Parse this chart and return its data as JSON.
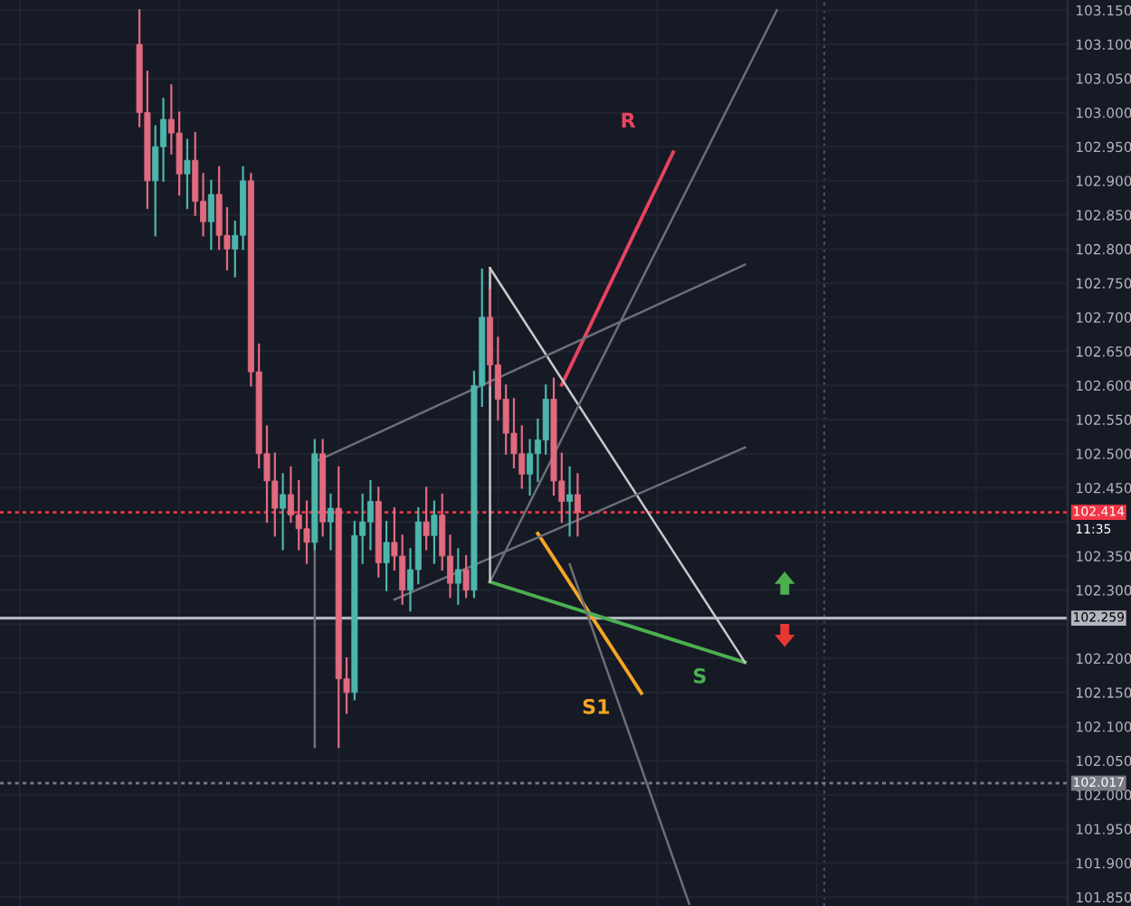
{
  "chart_data": {
    "type": "candlestick",
    "categories": [
      null,
      null,
      null,
      null,
      null,
      null,
      null,
      null,
      null,
      null,
      null,
      null,
      null,
      null,
      null,
      null,
      null,
      null,
      null,
      null,
      null,
      null,
      null,
      null,
      null,
      null,
      null,
      null,
      null,
      null,
      null,
      null,
      null,
      null,
      null,
      null,
      null,
      null,
      null,
      null,
      null,
      null,
      null,
      null,
      null,
      null,
      null,
      null,
      null,
      null,
      null,
      null,
      null,
      null,
      null,
      null,
      null,
      null,
      null,
      null,
      null,
      null,
      null,
      null,
      null,
      null,
      null,
      null,
      null,
      null,
      null,
      null,
      null,
      null,
      null,
      null,
      null,
      null,
      null,
      null,
      null,
      null,
      null,
      null,
      null,
      null,
      null,
      null,
      null,
      null,
      null,
      null,
      null,
      null,
      null,
      null,
      null,
      null,
      null,
      null,
      null,
      null,
      null,
      null,
      null,
      null,
      null,
      null,
      null,
      null,
      null,
      null,
      null,
      null,
      null,
      null,
      null,
      null,
      null,
      null,
      null,
      null,
      null,
      null,
      null,
      null,
      null,
      null,
      null,
      null,
      null,
      null,
      null,
      null
    ],
    "ohlc": [
      null,
      null,
      null,
      null,
      null,
      null,
      null,
      null,
      null,
      null,
      null,
      null,
      null,
      null,
      null,
      null,
      null,
      [
        103.1,
        103.15,
        102.98,
        103.0
      ],
      [
        103.0,
        103.06,
        102.86,
        102.9
      ],
      [
        102.9,
        102.98,
        102.82,
        102.95
      ],
      [
        102.95,
        103.02,
        102.9,
        102.99
      ],
      [
        102.99,
        103.04,
        102.94,
        102.97
      ],
      [
        102.97,
        103.0,
        102.88,
        102.91
      ],
      [
        102.91,
        102.96,
        102.86,
        102.93
      ],
      [
        102.93,
        102.97,
        102.85,
        102.87
      ],
      [
        102.87,
        102.91,
        102.82,
        102.84
      ],
      [
        102.84,
        102.9,
        102.8,
        102.88
      ],
      [
        102.88,
        102.92,
        102.8,
        102.82
      ],
      [
        102.82,
        102.86,
        102.77,
        102.8
      ],
      [
        102.8,
        102.84,
        102.76,
        102.82
      ],
      [
        102.82,
        102.92,
        102.8,
        102.9
      ],
      [
        102.9,
        102.91,
        102.6,
        102.62
      ],
      [
        102.62,
        102.66,
        102.48,
        102.5
      ],
      [
        102.5,
        102.54,
        102.4,
        102.46
      ],
      [
        102.46,
        102.5,
        102.38,
        102.42
      ],
      [
        102.42,
        102.47,
        102.36,
        102.44
      ],
      [
        102.44,
        102.48,
        102.4,
        102.41
      ],
      [
        102.41,
        102.46,
        102.36,
        102.39
      ],
      [
        102.39,
        102.43,
        102.34,
        102.37
      ],
      [
        102.37,
        102.52,
        102.36,
        102.5
      ],
      [
        102.5,
        102.52,
        102.38,
        102.4
      ],
      [
        102.4,
        102.44,
        102.36,
        102.42
      ],
      [
        102.42,
        102.48,
        102.07,
        102.17
      ],
      [
        102.17,
        102.2,
        102.12,
        102.15
      ],
      [
        102.15,
        102.4,
        102.14,
        102.38
      ],
      [
        102.38,
        102.44,
        102.34,
        102.4
      ],
      [
        102.4,
        102.46,
        102.36,
        102.43
      ],
      [
        102.43,
        102.45,
        102.32,
        102.34
      ],
      [
        102.34,
        102.4,
        102.3,
        102.37
      ],
      [
        102.37,
        102.42,
        102.33,
        102.35
      ],
      [
        102.35,
        102.38,
        102.28,
        102.3
      ],
      [
        102.3,
        102.36,
        102.27,
        102.33
      ],
      [
        102.33,
        102.42,
        102.31,
        102.4
      ],
      [
        102.4,
        102.45,
        102.36,
        102.38
      ],
      [
        102.38,
        102.43,
        102.34,
        102.41
      ],
      [
        102.41,
        102.44,
        102.33,
        102.35
      ],
      [
        102.35,
        102.38,
        102.29,
        102.31
      ],
      [
        102.31,
        102.36,
        102.28,
        102.33
      ],
      [
        102.33,
        102.35,
        102.29,
        102.3
      ],
      [
        102.3,
        102.62,
        102.29,
        102.6
      ],
      [
        102.6,
        102.77,
        102.57,
        102.7
      ],
      [
        102.7,
        102.74,
        102.6,
        102.63
      ],
      [
        102.63,
        102.67,
        102.55,
        102.58
      ],
      [
        102.58,
        102.6,
        102.5,
        102.53
      ],
      [
        102.53,
        102.58,
        102.48,
        102.5
      ],
      [
        102.5,
        102.54,
        102.45,
        102.47
      ],
      [
        102.47,
        102.52,
        102.44,
        102.5
      ],
      [
        102.5,
        102.55,
        102.46,
        102.52
      ],
      [
        102.52,
        102.6,
        102.5,
        102.58
      ],
      [
        102.58,
        102.61,
        102.44,
        102.46
      ],
      [
        102.46,
        102.5,
        102.4,
        102.43
      ],
      [
        102.43,
        102.48,
        102.38,
        102.44
      ],
      [
        102.44,
        102.47,
        102.38,
        102.414
      ],
      null,
      null,
      null,
      null,
      null,
      null,
      null,
      null,
      null,
      null,
      null,
      null,
      null,
      null,
      null,
      null,
      null,
      null,
      null,
      null,
      null,
      null,
      null,
      null,
      null,
      null,
      null,
      null,
      null,
      null,
      null,
      null,
      null,
      null,
      null,
      null,
      null,
      null,
      null,
      null,
      null,
      null,
      null,
      null,
      null,
      null,
      null,
      null,
      null,
      null,
      null,
      null,
      null,
      null,
      null,
      null,
      null,
      null,
      null,
      null,
      null
    ],
    "series": [
      {
        "name": "R",
        "type": "line",
        "color": "#e8435f",
        "values": [
          null,
          null,
          null,
          null,
          null,
          null,
          null,
          null,
          null,
          null,
          null,
          null,
          null,
          null,
          null,
          null,
          null,
          null,
          null,
          null,
          null,
          null,
          null,
          null,
          null,
          null,
          null,
          null,
          null,
          null,
          null,
          null,
          null,
          null,
          null,
          null,
          null,
          null,
          null,
          null,
          null,
          null,
          null,
          null,
          null,
          null,
          null,
          null,
          null,
          null,
          null,
          null,
          null,
          null,
          null,
          null,
          null,
          null,
          null,
          null,
          null,
          null,
          null,
          null,
          null,
          null,
          null,
          null,
          null,
          null,
          102.601,
          null,
          null,
          null,
          null,
          null,
          null,
          null,
          null,
          null,
          null,
          null,
          null,
          null,
          102.942,
          null,
          null,
          null,
          null,
          null,
          null,
          null,
          null,
          null,
          null,
          null,
          null,
          null,
          null,
          null,
          null,
          null,
          null,
          null,
          null,
          null,
          null,
          null,
          null,
          null,
          null,
          null,
          null,
          null,
          null,
          null,
          null,
          null,
          null,
          null,
          null,
          null,
          null,
          null,
          null,
          null,
          null,
          null,
          null,
          null,
          null,
          null,
          null,
          null
        ]
      },
      {
        "name": "S1",
        "type": "line",
        "color": "#f5a623",
        "values": [
          null,
          null,
          null,
          null,
          null,
          null,
          null,
          null,
          null,
          null,
          null,
          null,
          null,
          null,
          null,
          null,
          null,
          null,
          null,
          null,
          null,
          null,
          null,
          null,
          null,
          null,
          null,
          null,
          null,
          null,
          null,
          null,
          null,
          null,
          null,
          null,
          null,
          null,
          null,
          null,
          null,
          null,
          null,
          null,
          null,
          null,
          null,
          null,
          null,
          null,
          null,
          null,
          null,
          null,
          null,
          null,
          null,
          null,
          null,
          null,
          null,
          null,
          null,
          null,
          null,
          null,
          null,
          102.383,
          null,
          null,
          null,
          null,
          null,
          null,
          null,
          null,
          null,
          null,
          null,
          null,
          102.149,
          null,
          null,
          null,
          null,
          null,
          null,
          null,
          null,
          null,
          null,
          null,
          null,
          null,
          null,
          null,
          null,
          null,
          null,
          null,
          null,
          null,
          null,
          null,
          null,
          null,
          null,
          null,
          null,
          null,
          null,
          null,
          null,
          null,
          null,
          null,
          null,
          null,
          null,
          null,
          null,
          null,
          null,
          null,
          null,
          null,
          null,
          null,
          null,
          null,
          null,
          null,
          null,
          null
        ]
      },
      {
        "name": "S",
        "type": "line",
        "color": "#4caf50",
        "values": [
          null,
          null,
          null,
          null,
          null,
          null,
          null,
          null,
          null,
          null,
          null,
          null,
          null,
          null,
          null,
          null,
          null,
          null,
          null,
          null,
          null,
          null,
          null,
          null,
          null,
          null,
          null,
          null,
          null,
          null,
          null,
          null,
          null,
          null,
          null,
          null,
          null,
          null,
          null,
          null,
          null,
          null,
          null,
          null,
          null,
          null,
          null,
          null,
          null,
          null,
          null,
          null,
          null,
          null,
          null,
          null,
          null,
          null,
          null,
          null,
          null,
          102.312,
          null,
          null,
          null,
          null,
          null,
          null,
          null,
          null,
          null,
          null,
          null,
          null,
          null,
          null,
          null,
          null,
          null,
          null,
          null,
          null,
          null,
          null,
          null,
          null,
          null,
          null,
          null,
          null,
          null,
          null,
          null,
          102.194,
          null,
          null,
          null,
          null,
          null,
          null,
          null,
          null,
          null,
          null,
          null,
          null,
          null,
          null,
          null,
          null,
          null,
          null,
          null,
          null,
          null,
          null,
          null,
          null,
          null,
          null,
          null,
          null,
          null,
          null,
          null,
          null,
          null,
          null,
          null,
          null,
          null,
          null,
          null,
          null
        ]
      },
      {
        "type": "line",
        "color": "#c8c8c8",
        "values": [
          null,
          null,
          null,
          null,
          null,
          null,
          null,
          null,
          null,
          null,
          null,
          null,
          null,
          null,
          null,
          null,
          null,
          null,
          null,
          null,
          null,
          null,
          null,
          null,
          null,
          null,
          null,
          null,
          null,
          null,
          null,
          null,
          null,
          null,
          null,
          null,
          null,
          null,
          null,
          null,
          null,
          null,
          null,
          null,
          null,
          null,
          null,
          null,
          null,
          null,
          null,
          null,
          null,
          null,
          null,
          null,
          null,
          null,
          null,
          null,
          null,
          102.772,
          null,
          null,
          null,
          null,
          null,
          null,
          null,
          null,
          null,
          null,
          null,
          null,
          null,
          null,
          null,
          null,
          null,
          null,
          null,
          null,
          null,
          null,
          null,
          null,
          null,
          null,
          null,
          null,
          null,
          null,
          null,
          102.194,
          null,
          null,
          null,
          null,
          null,
          null,
          null,
          null,
          null,
          null,
          null,
          null,
          null,
          null,
          null,
          null,
          null,
          null,
          null,
          null,
          null,
          null,
          null,
          null,
          null,
          null,
          null,
          null,
          null,
          null,
          null,
          null,
          null,
          null,
          null,
          null,
          null,
          null,
          null,
          null
        ]
      },
      {
        "type": "line",
        "color": "#6b6f78",
        "values": [
          null,
          null,
          null,
          null,
          null,
          null,
          null,
          null,
          null,
          null,
          null,
          null,
          null,
          null,
          null,
          null,
          null,
          null,
          null,
          null,
          null,
          null,
          null,
          null,
          null,
          null,
          null,
          null,
          null,
          null,
          null,
          null,
          null,
          null,
          null,
          null,
          null,
          null,
          null,
          102.488,
          null,
          null,
          null,
          null,
          null,
          null,
          null,
          null,
          null,
          null,
          null,
          null,
          null,
          null,
          null,
          null,
          null,
          null,
          null,
          null,
          null,
          null,
          null,
          null,
          null,
          null,
          null,
          null,
          null,
          null,
          null,
          null,
          null,
          null,
          null,
          null,
          null,
          null,
          null,
          null,
          null,
          null,
          null,
          null,
          null,
          null,
          null,
          null,
          null,
          null,
          null,
          null,
          null,
          102.777,
          null,
          null,
          null,
          null,
          null,
          null,
          null,
          null,
          null,
          null,
          null,
          null,
          null,
          null,
          null,
          null,
          null,
          null,
          null,
          null,
          null,
          null,
          null,
          null,
          null,
          null,
          null,
          null,
          null,
          null,
          null,
          null,
          null,
          null,
          null,
          null,
          null,
          null,
          null,
          null
        ]
      },
      {
        "type": "line",
        "color": "#6b6f78",
        "values": [
          null,
          null,
          null,
          null,
          null,
          null,
          null,
          null,
          null,
          null,
          null,
          null,
          null,
          null,
          null,
          null,
          null,
          null,
          null,
          null,
          null,
          null,
          null,
          null,
          null,
          null,
          null,
          null,
          null,
          null,
          null,
          null,
          null,
          null,
          null,
          null,
          null,
          null,
          null,
          null,
          null,
          null,
          null,
          null,
          null,
          null,
          null,
          null,
          null,
          102.286,
          null,
          null,
          null,
          null,
          null,
          null,
          null,
          null,
          null,
          null,
          null,
          null,
          null,
          null,
          null,
          null,
          null,
          null,
          null,
          null,
          null,
          null,
          null,
          null,
          null,
          null,
          null,
          null,
          null,
          null,
          null,
          null,
          null,
          null,
          null,
          null,
          null,
          null,
          null,
          null,
          null,
          null,
          null,
          102.509,
          null,
          null,
          null,
          null,
          null,
          null,
          null,
          null,
          null,
          null,
          null,
          null,
          null,
          null,
          null,
          null,
          null,
          null,
          null,
          null,
          null,
          null,
          null,
          null,
          null,
          null,
          null,
          null,
          null,
          null,
          null,
          null,
          null,
          null,
          null,
          null,
          null,
          null,
          null,
          null
        ]
      },
      {
        "type": "line",
        "color": "#6b6f78",
        "values": [
          null,
          null,
          null,
          null,
          null,
          null,
          null,
          null,
          null,
          null,
          null,
          null,
          null,
          null,
          null,
          null,
          null,
          null,
          null,
          null,
          null,
          null,
          null,
          null,
          null,
          null,
          null,
          null,
          null,
          null,
          null,
          null,
          null,
          null,
          null,
          null,
          null,
          null,
          null,
          null,
          null,
          null,
          null,
          null,
          null,
          null,
          null,
          null,
          null,
          null,
          null,
          null,
          null,
          null,
          null,
          null,
          null,
          null,
          null,
          null,
          null,
          102.312,
          null,
          null,
          null,
          null,
          null,
          null,
          null,
          null,
          null,
          null,
          null,
          null,
          null,
          null,
          null,
          null,
          null,
          null,
          null,
          null,
          null,
          null,
          null,
          null,
          null,
          null,
          null,
          null,
          null,
          null,
          null,
          null,
          null,
          null,
          null,
          103.15,
          null,
          null,
          null,
          null,
          null,
          null,
          null,
          null,
          null,
          null,
          null,
          null,
          null,
          null,
          null,
          null,
          null,
          null,
          null,
          null,
          null,
          null,
          null,
          null,
          null,
          null,
          null,
          null,
          null,
          null,
          null,
          null,
          null,
          null,
          null,
          null
        ]
      },
      {
        "type": "line",
        "color": "#6b6f78",
        "values": [
          null,
          null,
          null,
          null,
          null,
          null,
          null,
          null,
          null,
          null,
          null,
          null,
          null,
          null,
          null,
          null,
          null,
          null,
          null,
          null,
          null,
          null,
          null,
          null,
          null,
          null,
          null,
          null,
          null,
          null,
          null,
          null,
          null,
          null,
          null,
          null,
          null,
          null,
          null,
          null,
          null,
          null,
          null,
          null,
          null,
          null,
          null,
          null,
          null,
          null,
          null,
          null,
          null,
          null,
          null,
          null,
          null,
          null,
          null,
          null,
          null,
          null,
          null,
          null,
          null,
          null,
          null,
          null,
          null,
          null,
          null,
          102.338,
          null,
          null,
          null,
          null,
          null,
          null,
          null,
          null,
          null,
          null,
          null,
          null,
          null,
          null,
          101.84,
          null,
          null,
          null,
          null,
          null,
          null,
          null,
          null,
          null,
          null,
          null,
          null,
          null,
          null,
          null,
          null,
          null,
          null,
          null,
          null,
          null,
          null,
          null,
          null,
          null,
          null,
          null,
          null,
          null,
          null,
          null,
          null,
          null,
          null,
          null,
          null,
          null,
          null,
          null,
          null,
          null,
          null,
          null,
          null,
          null,
          null,
          null
        ]
      }
    ],
    "ref_lines": [
      {
        "axis": "y",
        "value": 102.259,
        "label": "102.259",
        "color": "#b2b5be",
        "line_style": "solid"
      },
      {
        "axis": "y",
        "value": 102.017,
        "label": "102.017",
        "color": "#787b86",
        "line_style": "dotted"
      },
      {
        "axis": "y",
        "value": 102.414,
        "label": "102.414",
        "color": "#f23645",
        "line_style": "dotted"
      }
    ],
    "annotations": [
      "11:35"
    ],
    "ylim": [
      101.837,
      103.165
    ],
    "yticks": [
      {
        "value": 101.85,
        "label": "101.850"
      },
      {
        "value": 101.9,
        "label": "101.900"
      },
      {
        "value": 101.95,
        "label": "101.950"
      },
      {
        "value": 102.0,
        "label": "102.000"
      },
      {
        "value": 102.05,
        "label": "102.050"
      },
      {
        "value": 102.1,
        "label": "102.100"
      },
      {
        "value": 102.15,
        "label": "102.150"
      },
      {
        "value": 102.2,
        "label": "102.200"
      },
      {
        "value": 102.25,
        "label": null
      },
      {
        "value": 102.3,
        "label": "102.300"
      },
      {
        "value": 102.35,
        "label": "102.350"
      },
      {
        "value": 102.4,
        "label": null
      },
      {
        "value": 102.45,
        "label": "102.450"
      },
      {
        "value": 102.5,
        "label": "102.500"
      },
      {
        "value": 102.55,
        "label": "102.550"
      },
      {
        "value": 102.6,
        "label": "102.600"
      },
      {
        "value": 102.65,
        "label": "102.650"
      },
      {
        "value": 102.7,
        "label": "102.700"
      },
      {
        "value": 102.75,
        "label": "102.750"
      },
      {
        "value": 102.8,
        "label": "102.800"
      },
      {
        "value": 102.85,
        "label": "102.850"
      },
      {
        "value": 102.9,
        "label": "102.900"
      },
      {
        "value": 102.95,
        "label": "102.950"
      },
      {
        "value": 103.0,
        "label": "103.000"
      },
      {
        "value": 103.05,
        "label": "103.050"
      },
      {
        "value": 103.1,
        "label": "103.100"
      },
      {
        "value": 103.15,
        "label": "103.150"
      }
    ],
    "tick_labels": "y",
    "grid": true
  }
}
